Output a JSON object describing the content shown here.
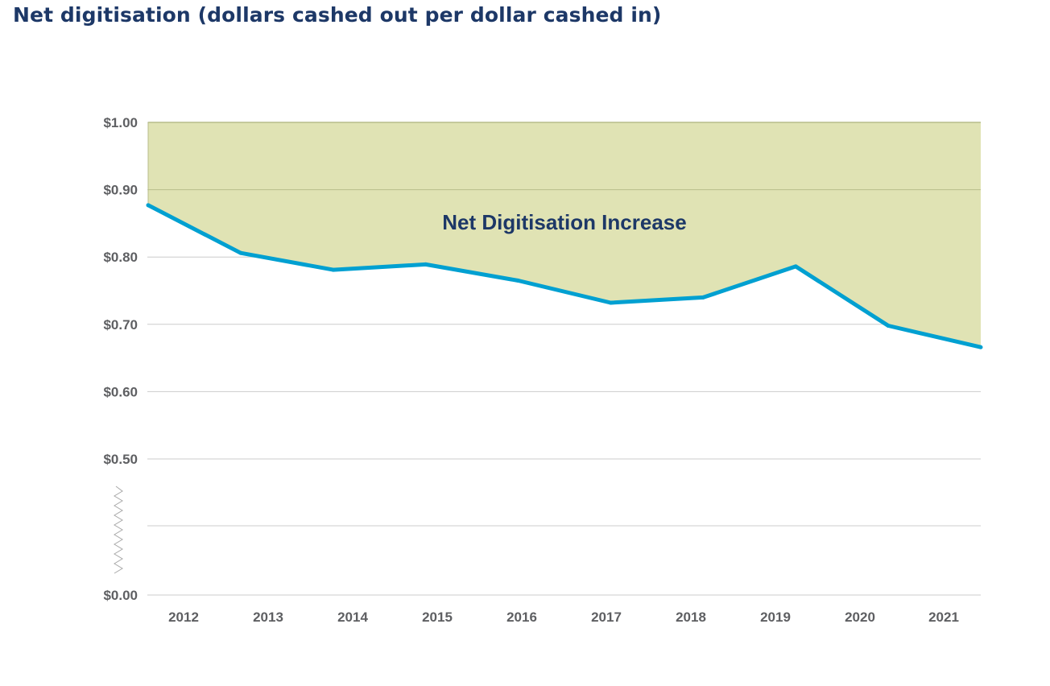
{
  "title": "Net digitisation (dollars cashed out per dollar cashed in)",
  "chart_data": {
    "type": "area",
    "title": "Net digitisation (dollars cashed out per dollar cashed in)",
    "xlabel": "",
    "ylabel": "",
    "categories": [
      "2012",
      "2013",
      "2014",
      "2015",
      "2016",
      "2017",
      "2018",
      "2019",
      "2020",
      "2021"
    ],
    "series": [
      {
        "values": [
          0.877,
          0.806,
          0.781,
          0.789,
          0.765,
          0.732,
          0.74,
          0.786,
          0.698,
          0.666
        ]
      }
    ],
    "shaded_region_upper": 1.0,
    "annotation": "Net Digitisation Increase",
    "y_tick_labels": [
      "$1.00",
      "$0.90",
      "$0.80",
      "$0.70",
      "$0.60",
      "$0.50",
      "$0.00"
    ],
    "y_tick_values": [
      1.0,
      0.9,
      0.8,
      0.7,
      0.6,
      0.5,
      0.0
    ],
    "ylim": [
      0.0,
      1.0
    ],
    "axis_break": "between $0.00 and $0.50",
    "grid": true,
    "legend": "none",
    "colors": {
      "line": "#00a0d1",
      "fill": "#e0e3b4",
      "fill_edge": "#b7bd8a",
      "grid": "#cccccc",
      "title": "#1d3867",
      "annotation": "#1d3867",
      "tick": "#5e5f62"
    }
  }
}
